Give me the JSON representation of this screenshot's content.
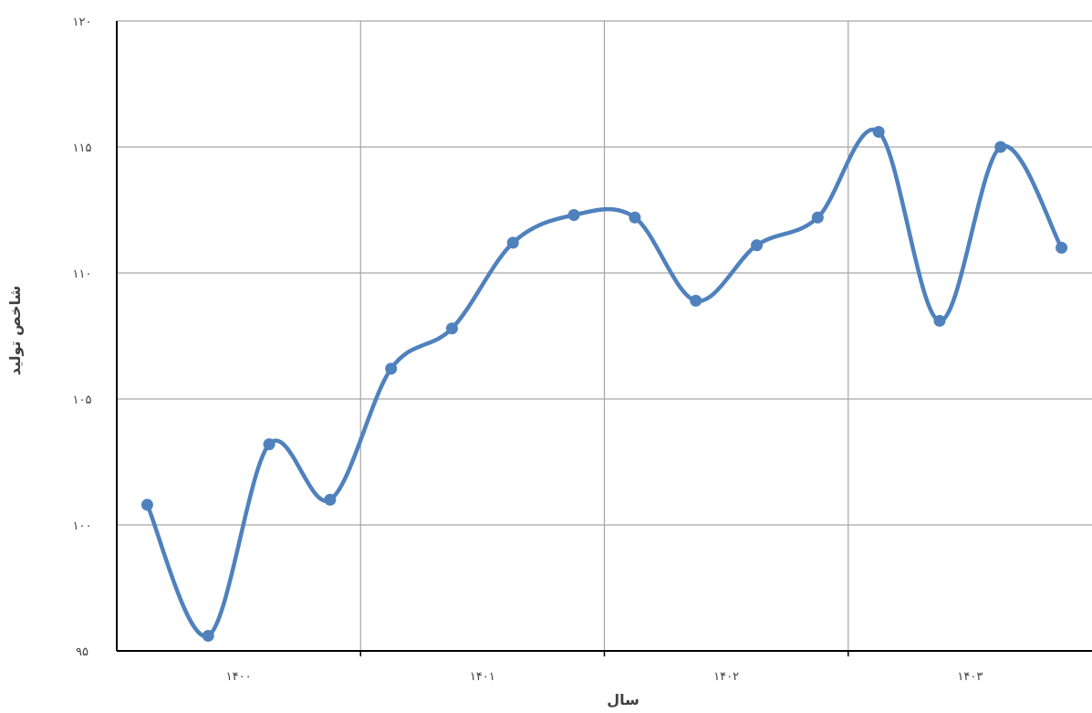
{
  "chart_data": {
    "type": "line",
    "title": "",
    "xlabel": "سال",
    "ylabel": "شاخص تولید",
    "x_tick_labels": [
      "۱۴۰۰",
      "۱۴۰۱",
      "۱۴۰۲",
      "۱۴۰۳"
    ],
    "y_tick_labels": [
      "۹۵",
      "۱۰۰",
      "۱۰۵",
      "۱۱۰",
      "۱۱۵",
      "۱۲۰"
    ],
    "ylim": [
      95,
      120
    ],
    "y_ticks": [
      95,
      100,
      105,
      110,
      115,
      120
    ],
    "grid": true,
    "smooth": true,
    "series": [
      {
        "color": "#4f81bd",
        "values": [
          100.8,
          95.6,
          103.2,
          101.0,
          106.2,
          107.8,
          111.2,
          112.3,
          112.2,
          108.9,
          111.1,
          112.2,
          115.6,
          108.1,
          115.0,
          111.0
        ]
      }
    ]
  }
}
